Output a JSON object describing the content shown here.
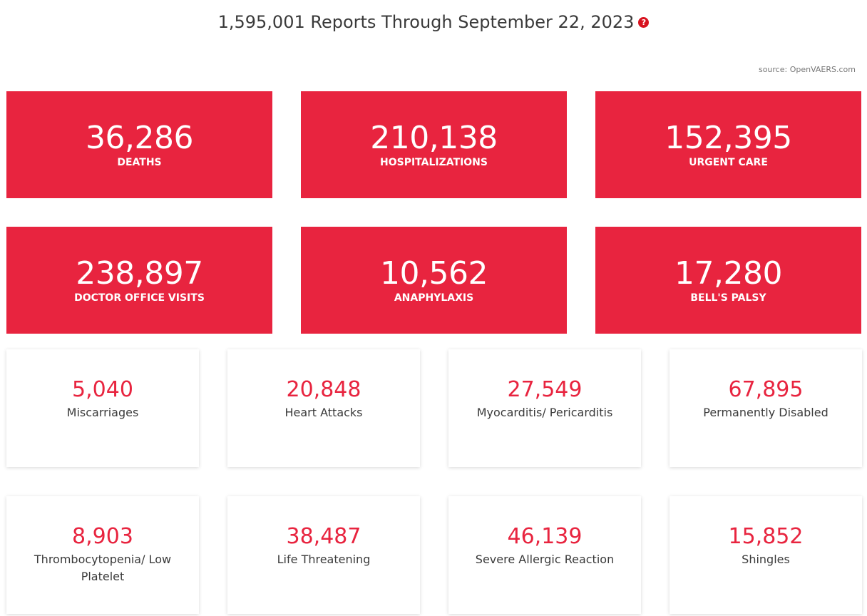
{
  "header": {
    "title": "1,595,001 Reports Through September 22, 2023",
    "help_glyph": "?",
    "source": "source: OpenVAERS.com"
  },
  "colors": {
    "accent": "#e8243f",
    "help_icon": "#d8131f",
    "text": "#3a3a3a"
  },
  "primary_stats": [
    {
      "value": "36,286",
      "label": "DEATHS"
    },
    {
      "value": "210,138",
      "label": "HOSPITALIZATIONS"
    },
    {
      "value": "152,395",
      "label": "URGENT CARE"
    },
    {
      "value": "238,897",
      "label": "DOCTOR OFFICE VISITS"
    },
    {
      "value": "10,562",
      "label": "ANAPHYLAXIS"
    },
    {
      "value": "17,280",
      "label": "BELL'S PALSY"
    }
  ],
  "secondary_stats": [
    {
      "value": "5,040",
      "label": "Miscarriages"
    },
    {
      "value": "20,848",
      "label": "Heart Attacks"
    },
    {
      "value": "27,549",
      "label": "Myocarditis/ Pericarditis"
    },
    {
      "value": "67,895",
      "label": "Permanently Disabled"
    },
    {
      "value": "8,903",
      "label": "Thrombocytopenia/ Low Platelet"
    },
    {
      "value": "38,487",
      "label": "Life Threatening"
    },
    {
      "value": "46,139",
      "label": "Severe Allergic Reaction"
    },
    {
      "value": "15,852",
      "label": "Shingles"
    }
  ]
}
